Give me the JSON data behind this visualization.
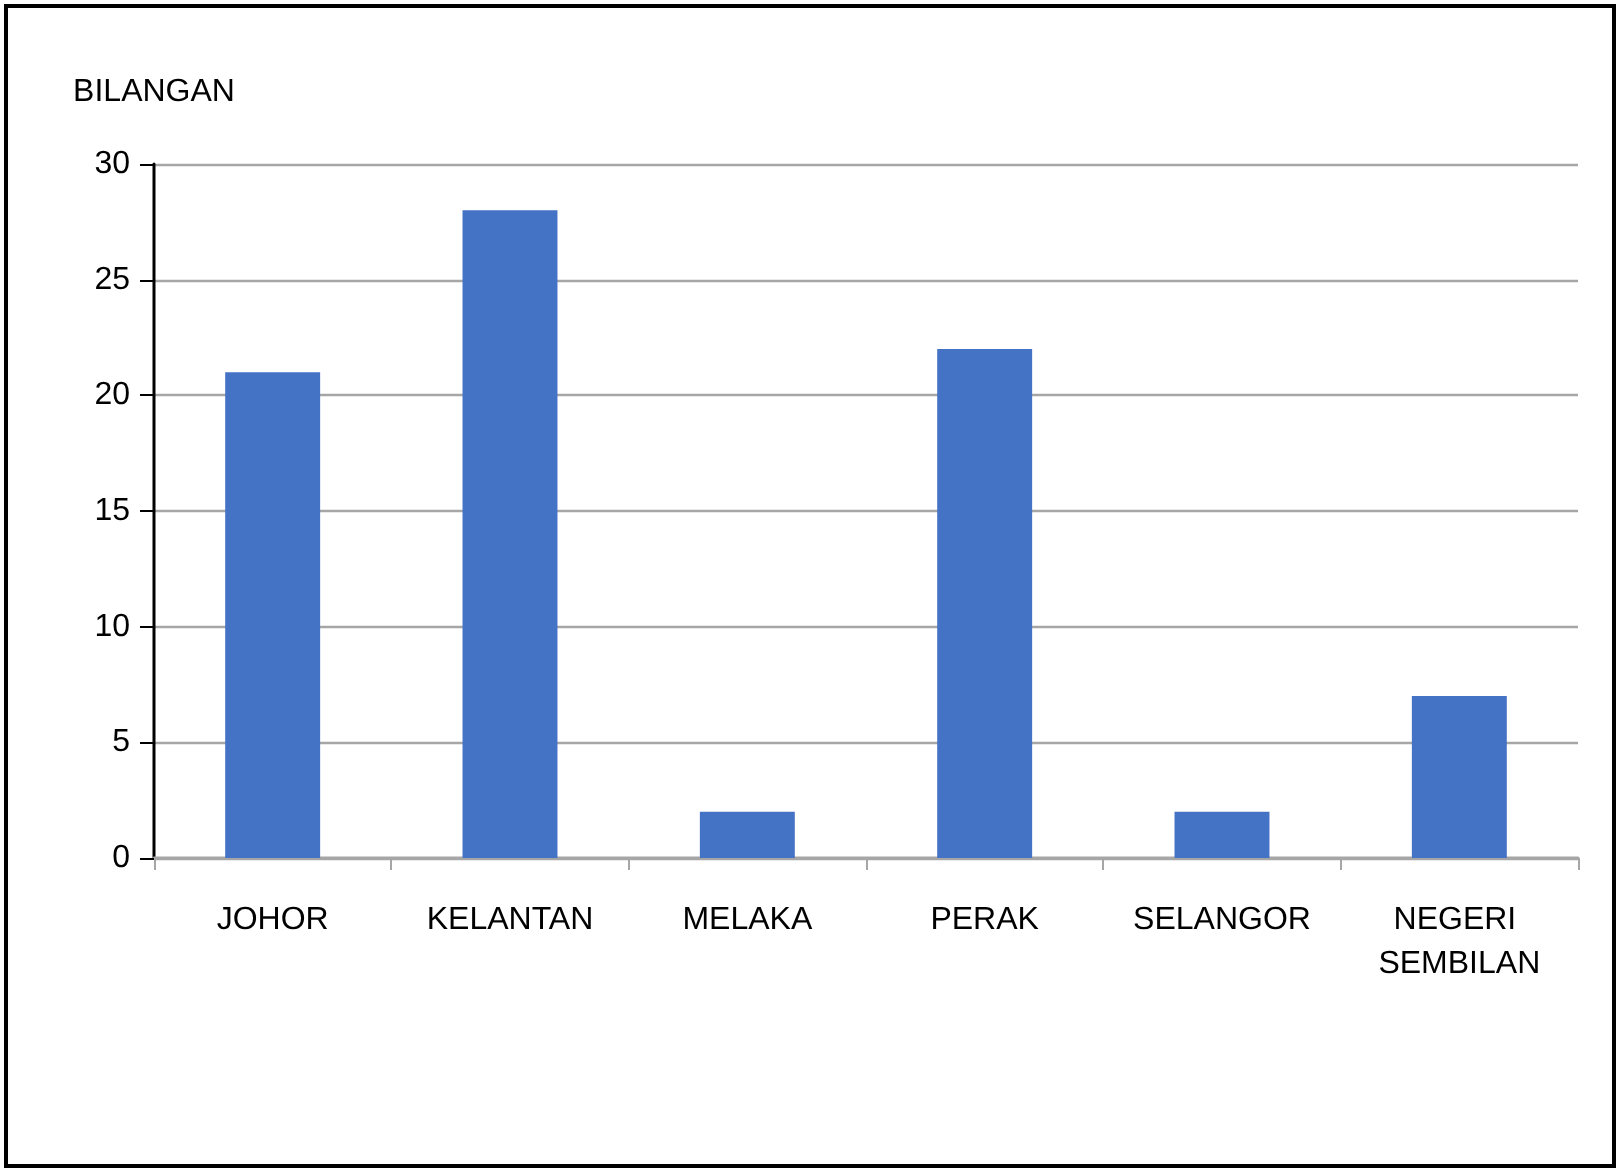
{
  "chart_data": {
    "type": "bar",
    "ylabel": "BILANGAN",
    "categories": [
      "JOHOR",
      "KELANTAN",
      "MELAKA",
      "PERAK",
      "SELANGOR",
      "NEGERI SEMBILAN"
    ],
    "values": [
      21,
      28,
      2,
      22,
      2,
      7
    ],
    "color": "#4472c4",
    "ylim": [
      0,
      30
    ],
    "yticks": [
      0,
      5,
      10,
      15,
      20,
      25,
      30
    ],
    "grid": "y"
  }
}
